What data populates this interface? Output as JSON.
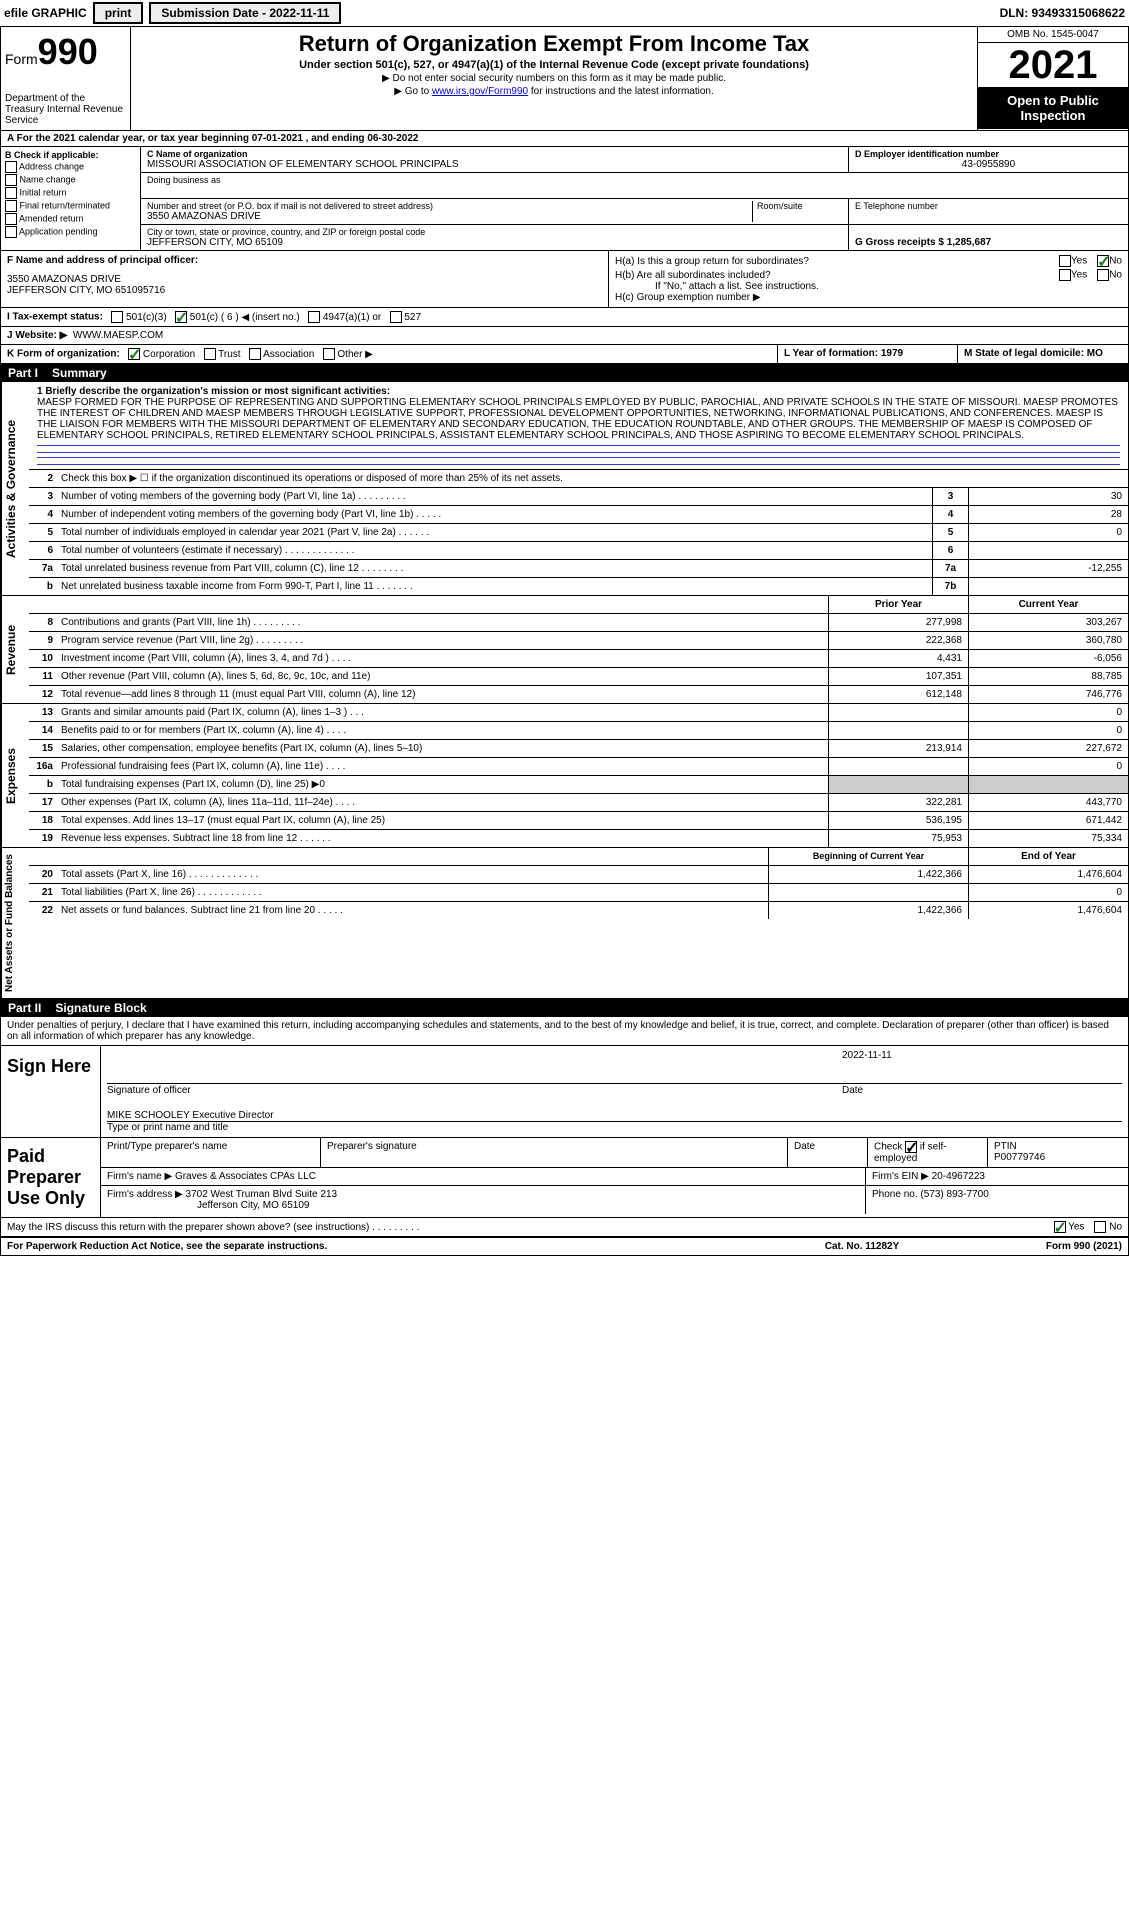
{
  "topbar": {
    "efile": "efile GRAPHIC",
    "print": "print",
    "submission": "Submission Date - 2022-11-11",
    "dln": "DLN: 93493315068622"
  },
  "header": {
    "form_prefix": "Form",
    "form_num": "990",
    "dept": "Department of the Treasury\nInternal Revenue Service",
    "title": "Return of Organization Exempt From Income Tax",
    "sub": "Under section 501(c), 527, or 4947(a)(1) of the Internal Revenue Code (except private foundations)",
    "note1": "▶ Do not enter social security numbers on this form as it may be made public.",
    "note2_pre": "▶ Go to ",
    "note2_link": "www.irs.gov/Form990",
    "note2_post": " for instructions and the latest information.",
    "omb": "OMB No. 1545-0047",
    "year": "2021",
    "inspect": "Open to Public Inspection"
  },
  "row_a": "A For the 2021 calendar year, or tax year beginning 07-01-2021   , and ending 06-30-2022",
  "col_b": {
    "title": "B Check if applicable:",
    "items": [
      "Address change",
      "Name change",
      "Initial return",
      "Final return/terminated",
      "Amended return",
      "Application pending"
    ]
  },
  "col_c": {
    "c_label": "C Name of organization",
    "c_name": "MISSOURI ASSOCIATION OF ELEMENTARY SCHOOL PRINCIPALS",
    "dba_label": "Doing business as",
    "addr_label": "Number and street (or P.O. box if mail is not delivered to street address)",
    "addr": "3550 AMAZONAS DRIVE",
    "room_label": "Room/suite",
    "city_label": "City or town, state or province, country, and ZIP or foreign postal code",
    "city": "JEFFERSON CITY, MO  65109"
  },
  "col_d": {
    "d_label": "D Employer identification number",
    "ein": "43-0955890",
    "e_label": "E Telephone number",
    "g_label": "G Gross receipts $ 1,285,687"
  },
  "row_f": {
    "f_label": "F  Name and address of principal officer:",
    "addr1": "3550 AMAZONAS DRIVE",
    "addr2": "JEFFERSON CITY, MO  651095716",
    "ha": "H(a)  Is this a group return for subordinates?",
    "hb": "H(b)  Are all subordinates included?",
    "hb_note": "If \"No,\" attach a list. See instructions.",
    "hc": "H(c)  Group exemption number ▶"
  },
  "row_i": {
    "label": "I   Tax-exempt status:",
    "opts": [
      "501(c)(3)",
      "501(c) ( 6 ) ◀ (insert no.)",
      "4947(a)(1) or",
      "527"
    ]
  },
  "row_j": {
    "label": "J   Website: ▶",
    "val": "WWW.MAESP.COM"
  },
  "row_k": {
    "label": "K Form of organization:",
    "opts": [
      "Corporation",
      "Trust",
      "Association",
      "Other ▶"
    ],
    "l_label": "L Year of formation: 1979",
    "m_label": "M State of legal domicile: MO"
  },
  "part1": {
    "num": "Part I",
    "title": "Summary"
  },
  "mission": {
    "label": "1   Briefly describe the organization's mission or most significant activities:",
    "text": "MAESP FORMED FOR THE PURPOSE OF REPRESENTING AND SUPPORTING ELEMENTARY SCHOOL PRINCIPALS EMPLOYED BY PUBLIC, PAROCHIAL, AND PRIVATE SCHOOLS IN THE STATE OF MISSOURI. MAESP PROMOTES THE INTEREST OF CHILDREN AND MAESP MEMBERS THROUGH LEGISLATIVE SUPPORT, PROFESSIONAL DEVELOPMENT OPPORTUNITIES, NETWORKING, INFORMATIONAL PUBLICATIONS, AND CONFERENCES. MAESP IS THE LIAISON FOR MEMBERS WITH THE MISSOURI DEPARTMENT OF ELEMENTARY AND SECONDARY EDUCATION, THE EDUCATION ROUNDTABLE, AND OTHER GROUPS. THE MEMBERSHIP OF MAESP IS COMPOSED OF ELEMENTARY SCHOOL PRINCIPALS, RETIRED ELEMENTARY SCHOOL PRINCIPALS, ASSISTANT ELEMENTARY SCHOOL PRINCIPALS, AND THOSE ASPIRING TO BECOME ELEMENTARY SCHOOL PRINCIPALS."
  },
  "governance_lines": [
    {
      "n": "2",
      "d": "Check this box ▶ ☐ if the organization discontinued its operations or disposed of more than 25% of its net assets.",
      "box": "",
      "v": ""
    },
    {
      "n": "3",
      "d": "Number of voting members of the governing body (Part VI, line 1a)   .    .    .    .    .    .    .    .    .",
      "box": "3",
      "v": "30"
    },
    {
      "n": "4",
      "d": "Number of independent voting members of the governing body (Part VI, line 1b)   .    .    .    .    .",
      "box": "4",
      "v": "28"
    },
    {
      "n": "5",
      "d": "Total number of individuals employed in calendar year 2021 (Part V, line 2a)   .    .    .    .    .    .",
      "box": "5",
      "v": "0"
    },
    {
      "n": "6",
      "d": "Total number of volunteers (estimate if necessary)   .    .    .    .    .    .    .    .    .    .    .    .    .",
      "box": "6",
      "v": ""
    },
    {
      "n": "7a",
      "d": "Total unrelated business revenue from Part VIII, column (C), line 12   .    .    .    .    .    .    .    .",
      "box": "7a",
      "v": "-12,255"
    },
    {
      "n": "b",
      "d": "Net unrelated business taxable income from Form 990-T, Part I, line 11   .    .    .    .    .    .    .",
      "box": "7b",
      "v": ""
    }
  ],
  "rev_hdr": {
    "c1": "Prior Year",
    "c2": "Current Year"
  },
  "revenue_lines": [
    {
      "n": "8",
      "d": "Contributions and grants (Part VIII, line 1h)   .    .    .    .    .    .    .    .    .",
      "v1": "277,998",
      "v2": "303,267"
    },
    {
      "n": "9",
      "d": "Program service revenue (Part VIII, line 2g)   .    .    .    .    .    .    .    .    .",
      "v1": "222,368",
      "v2": "360,780"
    },
    {
      "n": "10",
      "d": "Investment income (Part VIII, column (A), lines 3, 4, and 7d )   .    .    .    .",
      "v1": "4,431",
      "v2": "-6,056"
    },
    {
      "n": "11",
      "d": "Other revenue (Part VIII, column (A), lines 5, 6d, 8c, 9c, 10c, and 11e)",
      "v1": "107,351",
      "v2": "88,785"
    },
    {
      "n": "12",
      "d": "Total revenue—add lines 8 through 11 (must equal Part VIII, column (A), line 12)",
      "v1": "612,148",
      "v2": "746,776"
    }
  ],
  "expense_lines": [
    {
      "n": "13",
      "d": "Grants and similar amounts paid (Part IX, column (A), lines 1–3 )   .    .    .",
      "v1": "",
      "v2": "0"
    },
    {
      "n": "14",
      "d": "Benefits paid to or for members (Part IX, column (A), line 4)   .    .    .    .",
      "v1": "",
      "v2": "0"
    },
    {
      "n": "15",
      "d": "Salaries, other compensation, employee benefits (Part IX, column (A), lines 5–10)",
      "v1": "213,914",
      "v2": "227,672"
    },
    {
      "n": "16a",
      "d": "Professional fundraising fees (Part IX, column (A), line 11e)   .    .    .    .",
      "v1": "",
      "v2": "0"
    },
    {
      "n": "b",
      "d": "Total fundraising expenses (Part IX, column (D), line 25) ▶0",
      "v1": "shade",
      "v2": "shade"
    },
    {
      "n": "17",
      "d": "Other expenses (Part IX, column (A), lines 11a–11d, 11f–24e)   .    .    .    .",
      "v1": "322,281",
      "v2": "443,770"
    },
    {
      "n": "18",
      "d": "Total expenses. Add lines 13–17 (must equal Part IX, column (A), line 25)",
      "v1": "536,195",
      "v2": "671,442"
    },
    {
      "n": "19",
      "d": "Revenue less expenses. Subtract line 18 from line 12   .    .    .    .    .    .",
      "v1": "75,953",
      "v2": "75,334"
    }
  ],
  "net_hdr": {
    "c1": "Beginning of Current Year",
    "c2": "End of Year"
  },
  "net_lines": [
    {
      "n": "20",
      "d": "Total assets (Part X, line 16)   .    .    .    .    .    .    .    .    .    .    .    .    .",
      "v1": "1,422,366",
      "v2": "1,476,604"
    },
    {
      "n": "21",
      "d": "Total liabilities (Part X, line 26)   .    .    .    .    .    .    .    .    .    .    .    .",
      "v1": "",
      "v2": "0"
    },
    {
      "n": "22",
      "d": "Net assets or fund balances. Subtract line 21 from line 20   .    .    .    .    .",
      "v1": "1,422,366",
      "v2": "1,476,604"
    }
  ],
  "part2": {
    "num": "Part II",
    "title": "Signature Block"
  },
  "sig": {
    "decl": "Under penalties of perjury, I declare that I have examined this return, including accompanying schedules and statements, and to the best of my knowledge and belief, it is true, correct, and complete. Declaration of preparer (other than officer) is based on all information of which preparer has any knowledge.",
    "sign_label": "Sign Here",
    "date": "2022-11-11",
    "sig_of_officer": "Signature of officer",
    "date_label": "Date",
    "officer": "MIKE SCHOOLEY Executive Director",
    "type_label": "Type or print name and title"
  },
  "prep": {
    "label": "Paid Preparer Use Only",
    "h1": "Print/Type preparer's name",
    "h2": "Preparer's signature",
    "h3": "Date",
    "h4": "Check ☑ if self-employed",
    "h5": "PTIN",
    "ptin": "P00779746",
    "firm_name_label": "Firm's name    ▶",
    "firm_name": "Graves & Associates CPAs LLC",
    "firm_ein_label": "Firm's EIN ▶",
    "firm_ein": "20-4967223",
    "firm_addr_label": "Firm's address ▶",
    "firm_addr": "3702 West Truman Blvd Suite 213",
    "firm_city": "Jefferson City, MO  65109",
    "phone_label": "Phone no.",
    "phone": "(573) 893-7700"
  },
  "discuss": "May the IRS discuss this return with the preparer shown above? (see instructions)   .    .    .    .    .    .    .    .    .",
  "footer": {
    "left": "For Paperwork Reduction Act Notice, see the separate instructions.",
    "center": "Cat. No. 11282Y",
    "right": "Form 990 (2021)"
  },
  "vtabs": {
    "gov": "Activities & Governance",
    "rev": "Revenue",
    "exp": "Expenses",
    "net": "Net Assets or Fund Balances"
  }
}
